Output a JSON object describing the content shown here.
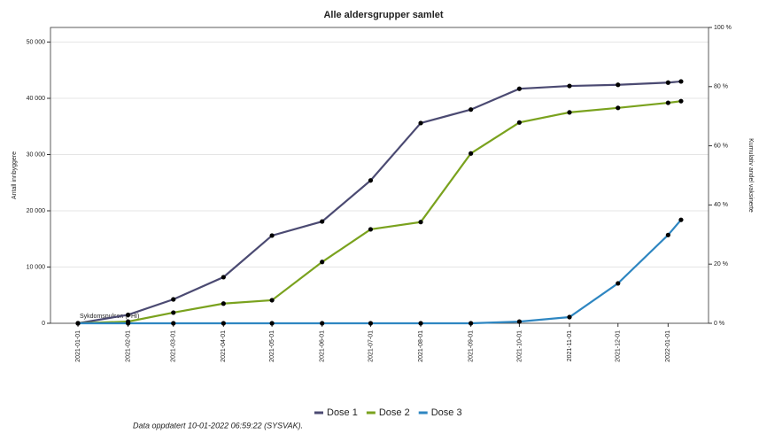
{
  "chart_data": {
    "type": "line",
    "title": "Alle aldersgrupper samlet",
    "ylabel": "Antall innbyggere",
    "y2label": "Kumulativ andel vaksinerte",
    "annotation": "Sykdomspulsen (FHI)",
    "footnote": "Data oppdatert 10-01-2022 06:59:22 (SYSVAK).",
    "x": [
      "2021-01-01",
      "2021-02-01",
      "2021-03-01",
      "2021-04-01",
      "2021-05-01",
      "2021-06-01",
      "2021-07-01",
      "2021-08-01",
      "2021-09-01",
      "2021-10-01",
      "2021-11-01",
      "2021-12-01",
      "2022-01-01",
      "2022-01-09"
    ],
    "series": [
      {
        "name": "Dose 1",
        "color": "#4b4a72",
        "values": [
          0,
          1500,
          4250,
          8200,
          15600,
          18100,
          25400,
          35600,
          38000,
          41700,
          42200,
          42400,
          42800,
          43000
        ]
      },
      {
        "name": "Dose 2",
        "color": "#7aa21e",
        "values": [
          0,
          300,
          1900,
          3500,
          4100,
          10900,
          16700,
          18000,
          30200,
          35700,
          37500,
          38300,
          39200,
          39500
        ]
      },
      {
        "name": "Dose 3",
        "color": "#2e86c1",
        "values": [
          0,
          0,
          0,
          0,
          0,
          0,
          0,
          0,
          0,
          300,
          1100,
          7100,
          15700,
          18400
        ]
      }
    ],
    "xlim": [
      "2020-12-15",
      "2022-01-26"
    ],
    "xticks": [
      "2021-01-01",
      "2021-02-01",
      "2021-03-01",
      "2021-04-01",
      "2021-05-01",
      "2021-06-01",
      "2021-07-01",
      "2021-08-01",
      "2021-09-01",
      "2021-10-01",
      "2021-11-01",
      "2021-12-01",
      "2022-01-01"
    ],
    "ylim": [
      0,
      52600
    ],
    "yticks": [
      0,
      {
        "value": 10000,
        "label": "10 000"
      },
      {
        "value": 20000,
        "label": "20 000"
      },
      {
        "value": 30000,
        "label": "30 000"
      },
      {
        "value": 40000,
        "label": "40 000"
      },
      {
        "value": 50000,
        "label": "50 000"
      }
    ],
    "y2lim": [
      0,
      100
    ],
    "y2ticks": [
      {
        "value": 0,
        "label": "0 %"
      },
      {
        "value": 20,
        "label": "20 %"
      },
      {
        "value": 40,
        "label": "40 %"
      },
      {
        "value": 60,
        "label": "60 %"
      },
      {
        "value": 80,
        "label": "80 %"
      },
      {
        "value": 100,
        "label": "100 %"
      }
    ],
    "grid": true,
    "legend": "bottom"
  }
}
